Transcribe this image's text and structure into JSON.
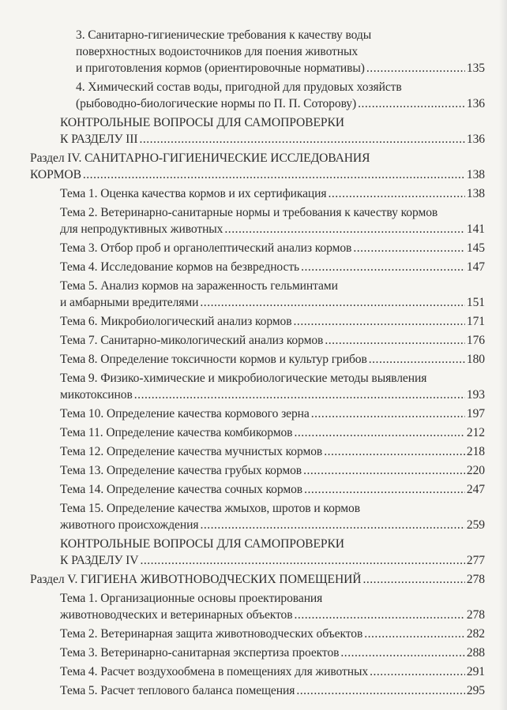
{
  "entries": [
    {
      "level": "sub",
      "lines": [
        "3. Санитарно-гигиенические требования к качеству воды",
        "поверхностных водоисточников для поения животных",
        "и приготовления кормов (ориентировочные нормативы)"
      ],
      "page": "135"
    },
    {
      "level": "sub",
      "lines": [
        "4. Химический состав воды, пригодной для прудовых хозяйств",
        "(рыбоводно-биологические нормы по П. П. Соторову)"
      ],
      "page": "136"
    },
    {
      "level": "ctrl",
      "lines": [
        "КОНТРОЛЬНЫЕ ВОПРОСЫ ДЛЯ САМОПРОВЕРКИ",
        "К РАЗДЕЛУ III"
      ],
      "page": "136"
    },
    {
      "level": "section",
      "lines": [
        "Раздел IV. САНИТАРНО-ГИГИЕНИЧЕСКИЕ ИССЛЕДОВАНИЯ",
        "КОРМОВ"
      ],
      "page": "138"
    },
    {
      "level": "topic",
      "lines": [
        "Тема 1. Оценка качества кормов и их сертификация"
      ],
      "page": "138"
    },
    {
      "level": "topic",
      "lines": [
        "Тема 2. Ветеринарно-санитарные нормы и требования к качеству кормов",
        "для непродуктивных животных"
      ],
      "page": "141"
    },
    {
      "level": "topic",
      "lines": [
        "Тема 3. Отбор проб и органолептический анализ кормов"
      ],
      "page": "145"
    },
    {
      "level": "topic",
      "lines": [
        "Тема 4. Исследование кормов на безвредность"
      ],
      "page": "147"
    },
    {
      "level": "topic",
      "lines": [
        "Тема 5. Анализ кормов на зараженность гельминтами",
        "и амбарными вредителями"
      ],
      "page": "151"
    },
    {
      "level": "topic",
      "lines": [
        "Тема 6. Микробиологический анализ кормов"
      ],
      "page": "171"
    },
    {
      "level": "topic",
      "lines": [
        "Тема 7. Санитарно-микологический анализ кормов"
      ],
      "page": "176"
    },
    {
      "level": "topic",
      "lines": [
        "Тема 8. Определение токсичности кормов и культур грибов"
      ],
      "page": "180"
    },
    {
      "level": "topic",
      "lines": [
        "Тема 9. Физико-химические и микробиологические методы выявления",
        "микотоксинов"
      ],
      "page": "193"
    },
    {
      "level": "topic",
      "lines": [
        "Тема 10. Определение качества кормового зерна"
      ],
      "page": "197"
    },
    {
      "level": "topic",
      "lines": [
        "Тема 11. Определение качества комбикормов"
      ],
      "page": "212"
    },
    {
      "level": "topic",
      "lines": [
        "Тема 12. Определение качества мучнистых кормов"
      ],
      "page": "218"
    },
    {
      "level": "topic",
      "lines": [
        "Тема 13. Определение качества грубых кормов"
      ],
      "page": "220"
    },
    {
      "level": "topic",
      "lines": [
        "Тема 14. Определение качества сочных кормов"
      ],
      "page": "247"
    },
    {
      "level": "topic",
      "lines": [
        "Тема 15. Определение качества жмыхов, шротов и кормов",
        "животного происхождения"
      ],
      "page": "259"
    },
    {
      "level": "ctrl",
      "lines": [
        "КОНТРОЛЬНЫЕ ВОПРОСЫ ДЛЯ САМОПРОВЕРКИ",
        "К РАЗДЕЛУ IV"
      ],
      "page": "277"
    },
    {
      "level": "section",
      "lines": [
        "Раздел V. ГИГИЕНА ЖИВОТНОВОДЧЕСКИХ ПОМЕЩЕНИЙ"
      ],
      "page": "278"
    },
    {
      "level": "topic",
      "lines": [
        "Тема 1. Организационные основы проектирования",
        "животноводческих и ветеринарных объектов"
      ],
      "page": "278"
    },
    {
      "level": "topic",
      "lines": [
        "Тема 2. Ветеринарная защита животноводческих объектов"
      ],
      "page": "282"
    },
    {
      "level": "topic",
      "lines": [
        "Тема 3. Ветеринарно-санитарная экспертиза проектов"
      ],
      "page": "288"
    },
    {
      "level": "topic",
      "lines": [
        "Тема 4. Расчет воздухообмена в помещениях для животных"
      ],
      "page": "291"
    },
    {
      "level": "topic",
      "lines": [
        "Тема 5. Расчет теплового баланса помещения"
      ],
      "page": "295"
    }
  ]
}
